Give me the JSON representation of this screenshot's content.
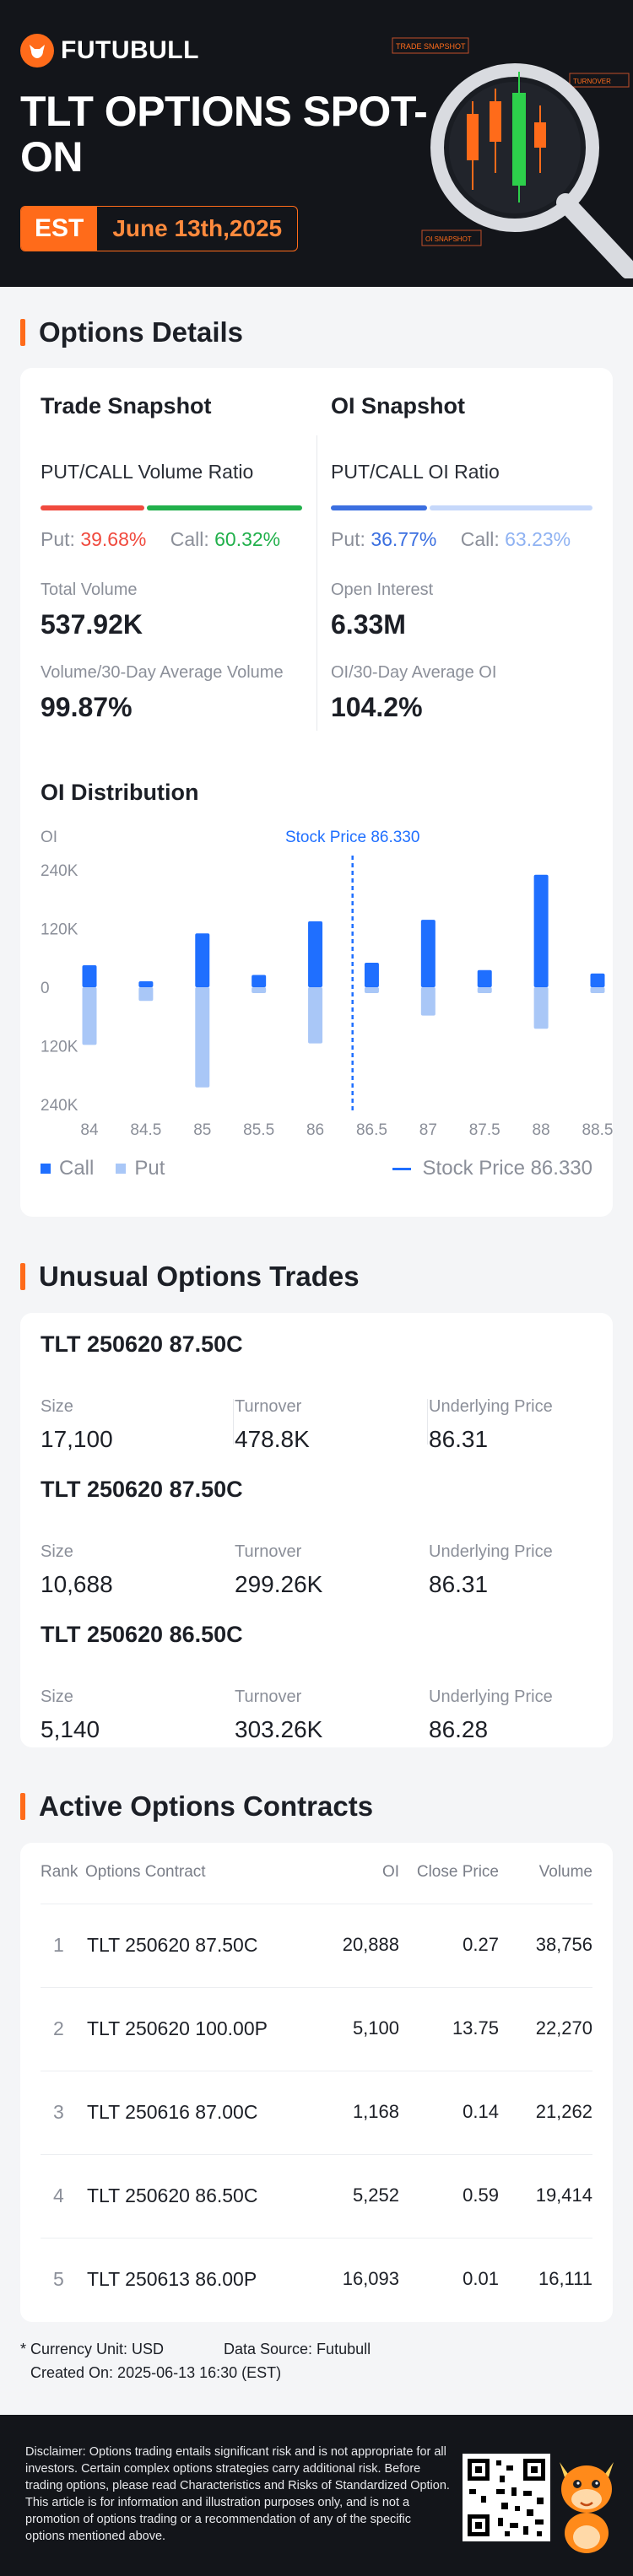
{
  "brand": {
    "name": "FUTUBULL"
  },
  "hero": {
    "title": "TLT OPTIONS SPOT-ON",
    "timezone": "EST",
    "date": "June 13th,2025",
    "art_labels": [
      "TRADE SNAPSHOT",
      "TURNOVER",
      "OI SNAPSHOT"
    ]
  },
  "options_details": {
    "section_title": "Options Details",
    "trade": {
      "title": "Trade Snapshot",
      "ratio_label": "PUT/CALL Volume Ratio",
      "put_label": "Put:",
      "put_value": "39.68%",
      "call_label": "Call:",
      "call_value": "60.32%",
      "put_fraction": 0.3968,
      "total_volume_label": "Total Volume",
      "total_volume": "537.92K",
      "avg_label": "Volume/30-Day Average Volume",
      "avg_value": "99.87%"
    },
    "oi": {
      "title": "OI Snapshot",
      "ratio_label": "PUT/CALL OI Ratio",
      "put_label": "Put:",
      "put_value": "36.77%",
      "call_label": "Call:",
      "call_value": "63.23%",
      "put_fraction": 0.3677,
      "open_interest_label": "Open Interest",
      "open_interest": "6.33M",
      "avg_label": "OI/30-Day Average OI",
      "avg_value": "104.2%"
    },
    "distribution": {
      "title": "OI Distribution",
      "axis_label": "OI",
      "stock_price_label": "Stock Price 86.330",
      "legend_call": "Call",
      "legend_put": "Put",
      "legend_price": "Stock Price 86.330"
    }
  },
  "chart_data": {
    "type": "bar",
    "title": "OI Distribution",
    "ylabel": "OI",
    "categories": [
      "84",
      "84.5",
      "85",
      "85.5",
      "86",
      "86.5",
      "87",
      "87.5",
      "88",
      "88.5"
    ],
    "y_ticks": [
      "240K",
      "120K",
      "0",
      "120K",
      "240K"
    ],
    "ylim": [
      -240000,
      240000
    ],
    "stock_price": 86.33,
    "series": [
      {
        "name": "Call",
        "values": [
          45000,
          12000,
          110000,
          25000,
          135000,
          50000,
          138000,
          35000,
          230000,
          28000
        ]
      },
      {
        "name": "Put",
        "values": [
          -118000,
          -28000,
          -205000,
          -12000,
          -115000,
          -12000,
          -58000,
          -12000,
          -85000,
          -12000
        ]
      }
    ],
    "colors": {
      "call": "#1f6fff",
      "put": "#a9c7f7",
      "price_line": "#1f6fff"
    }
  },
  "unusual": {
    "section_title": "Unusual Options Trades",
    "labels": {
      "size": "Size",
      "turnover": "Turnover",
      "underlying": "Underlying Price"
    },
    "trades": [
      {
        "contract": "TLT 250620 87.50C",
        "size": "17,100",
        "turnover": "478.8K",
        "underlying": "86.31"
      },
      {
        "contract": "TLT 250620 87.50C",
        "size": "10,688",
        "turnover": "299.26K",
        "underlying": "86.31"
      },
      {
        "contract": "TLT 250620 86.50C",
        "size": "5,140",
        "turnover": "303.26K",
        "underlying": "86.28"
      }
    ]
  },
  "active": {
    "section_title": "Active Options Contracts",
    "headers": {
      "rank": "Rank",
      "contract": "Options Contract",
      "oi": "OI",
      "close": "Close Price",
      "volume": "Volume"
    },
    "rows": [
      {
        "rank": "1",
        "contract": "TLT 250620 87.50C",
        "oi": "20,888",
        "close": "0.27",
        "volume": "38,756"
      },
      {
        "rank": "2",
        "contract": "TLT 250620 100.00P",
        "oi": "5,100",
        "close": "13.75",
        "volume": "22,270"
      },
      {
        "rank": "3",
        "contract": "TLT 250616 87.00C",
        "oi": "1,168",
        "close": "0.14",
        "volume": "21,262"
      },
      {
        "rank": "4",
        "contract": "TLT 250620 86.50C",
        "oi": "5,252",
        "close": "0.59",
        "volume": "19,414"
      },
      {
        "rank": "5",
        "contract": "TLT 250613 86.00P",
        "oi": "16,093",
        "close": "0.01",
        "volume": "16,111"
      }
    ]
  },
  "notes": {
    "currency": "* Currency Unit: USD",
    "source": "Data Source: Futubull",
    "created": "Created On: 2025-06-13 16:30 (EST)"
  },
  "footer": {
    "disclaimer": "Disclaimer: Options trading entails significant risk and is not appropriate for all investors. Certain complex options strategies carry additional risk. Before trading options, please read Characteristics and Risks of Standardized Option. This article is for information and illustration purposes only, and is not a promotion of options trading or a recommendation of any of the specific options mentioned above."
  }
}
